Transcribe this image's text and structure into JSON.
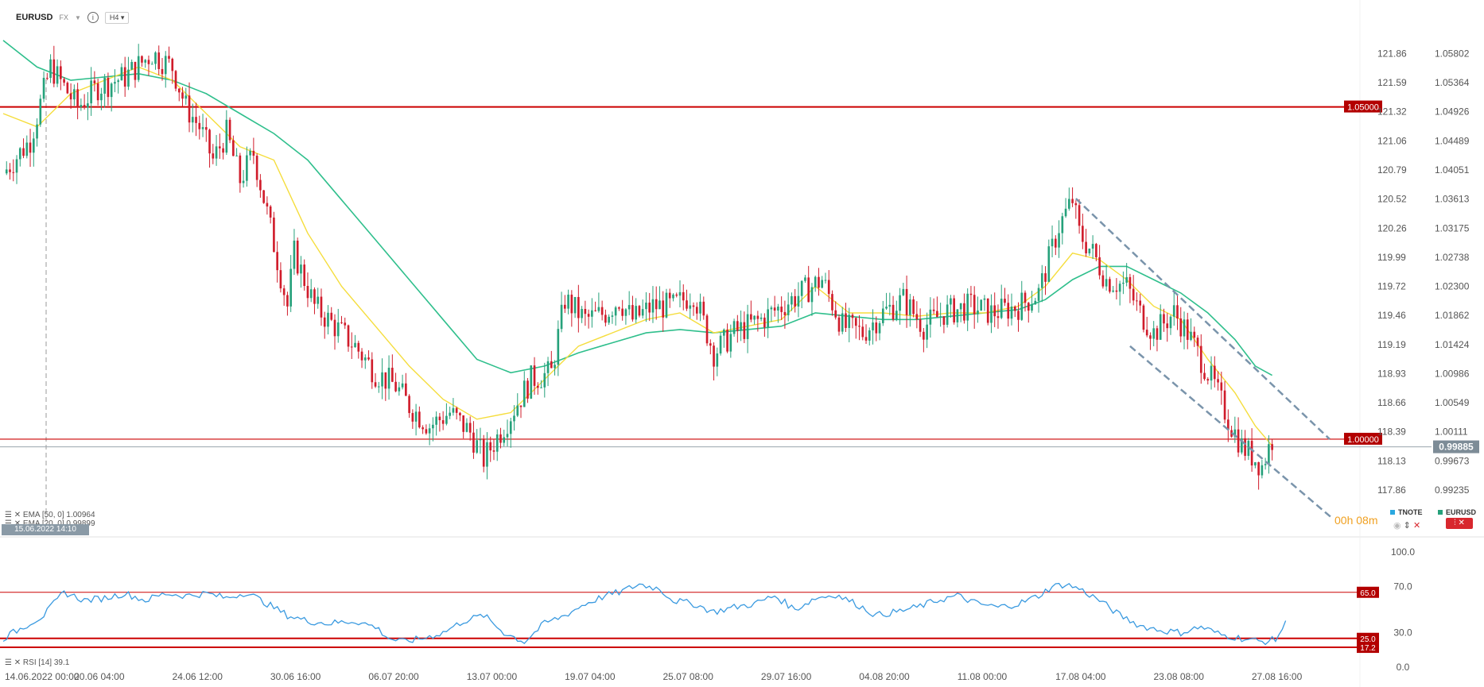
{
  "header": {
    "symbol": "EURUSD",
    "market": "FX",
    "timeframe": "H4"
  },
  "indicators": {
    "ema50": "EMA [50, 0] 1.00964",
    "ema_hidden": "EMA [20, 0] 0.99899",
    "rsi": "RSI [14] 39.1"
  },
  "crosshair_date": "15.06.2022 14:10",
  "timer": "00h 08m",
  "legend": [
    {
      "name": "TNOTE",
      "color": "#2aa8e0"
    },
    {
      "name": "EURUSD",
      "color": "#26a17b"
    }
  ],
  "colors": {
    "up": "#26a17b",
    "down": "#d01c2b",
    "ema_fast": "#f5dd3c",
    "ema_slow": "#2fbf8c",
    "rsi": "#3a9ae0",
    "level": "#cc0000",
    "trend": "#7a94ab"
  },
  "chart_data": {
    "type": "candlestick",
    "title": "",
    "x_ticks": [
      "14.06.2022 00:00",
      "20.06 04:00",
      "24.06 12:00",
      "30.06 16:00",
      "06.07 20:00",
      "13.07 00:00",
      "19.07 04:00",
      "25.07 08:00",
      "29.07 16:00",
      "04.08 20:00",
      "11.08 00:00",
      "17.08 04:00",
      "23.08 08:00",
      "27.08 16:00"
    ],
    "y_left_ticks": [
      "121.86",
      "121.59",
      "121.32",
      "121.06",
      "120.79",
      "120.52",
      "120.26",
      "119.99",
      "119.72",
      "119.46",
      "119.19",
      "118.93",
      "118.66",
      "118.39",
      "118.13",
      "117.86"
    ],
    "y_right_ticks": [
      "1.05802",
      "1.05364",
      "1.04926",
      "1.04489",
      "1.04051",
      "1.03613",
      "1.03175",
      "1.02738",
      "1.02300",
      "1.01862",
      "1.01424",
      "1.00986",
      "1.00549",
      "1.00111",
      "0.99673",
      "0.99235"
    ],
    "ylim": [
      0.9884,
      1.0625
    ],
    "current_price": "0.99885",
    "levels": [
      {
        "label": "1.05000",
        "value": 1.05
      },
      {
        "label": "1.00000",
        "value": 1.0
      }
    ],
    "close_path": [
      [
        0,
        1.04
      ],
      [
        8,
        1.045
      ],
      [
        14,
        1.056
      ],
      [
        22,
        1.05
      ],
      [
        28,
        1.053
      ],
      [
        36,
        1.0545
      ],
      [
        44,
        1.058
      ],
      [
        50,
        1.056
      ],
      [
        54,
        1.05
      ],
      [
        58,
        1.047
      ],
      [
        62,
        1.042
      ],
      [
        66,
        1.046
      ],
      [
        70,
        1.039
      ],
      [
        74,
        1.043
      ],
      [
        78,
        1.034
      ],
      [
        84,
        1.02
      ],
      [
        86,
        1.028
      ],
      [
        92,
        1.02
      ],
      [
        96,
        1.018
      ],
      [
        104,
        1.014
      ],
      [
        110,
        1.01
      ],
      [
        116,
        1.008
      ],
      [
        120,
        1.005
      ],
      [
        126,
        1.002
      ],
      [
        132,
        1.004
      ],
      [
        138,
        1.001
      ],
      [
        142,
        0.997
      ],
      [
        148,
        1.002
      ],
      [
        156,
        1.009
      ],
      [
        162,
        1.01
      ],
      [
        166,
        1.021
      ],
      [
        172,
        1.018
      ],
      [
        178,
        1.019
      ],
      [
        182,
        1.021
      ],
      [
        186,
        1.018
      ],
      [
        192,
        1.02
      ],
      [
        198,
        1.02
      ],
      [
        204,
        1.022
      ],
      [
        210,
        1.013
      ],
      [
        216,
        1.016
      ],
      [
        224,
        1.018
      ],
      [
        230,
        1.02
      ],
      [
        236,
        1.022
      ],
      [
        242,
        1.024
      ],
      [
        248,
        1.017
      ],
      [
        254,
        1.016
      ],
      [
        260,
        1.019
      ],
      [
        266,
        1.021
      ],
      [
        272,
        1.017
      ],
      [
        278,
        1.019
      ],
      [
        286,
        1.02
      ],
      [
        292,
        1.019
      ],
      [
        300,
        1.02
      ],
      [
        306,
        1.022
      ],
      [
        312,
        1.032
      ],
      [
        316,
        1.036
      ],
      [
        318,
        1.031
      ],
      [
        322,
        1.028
      ],
      [
        326,
        1.024
      ],
      [
        332,
        1.023
      ],
      [
        336,
        1.019
      ],
      [
        340,
        1.016
      ],
      [
        346,
        1.019
      ],
      [
        350,
        1.016
      ],
      [
        354,
        1.012
      ],
      [
        358,
        1.008
      ],
      [
        362,
        1.003
      ],
      [
        366,
        0.999
      ],
      [
        372,
        0.996
      ],
      [
        375,
        1.0
      ]
    ],
    "ema_fast": [
      [
        0,
        1.049
      ],
      [
        10,
        1.047
      ],
      [
        20,
        1.052
      ],
      [
        30,
        1.054
      ],
      [
        40,
        1.056
      ],
      [
        50,
        1.054
      ],
      [
        60,
        1.049
      ],
      [
        70,
        1.044
      ],
      [
        80,
        1.042
      ],
      [
        90,
        1.031
      ],
      [
        100,
        1.023
      ],
      [
        110,
        1.017
      ],
      [
        120,
        1.011
      ],
      [
        130,
        1.006
      ],
      [
        140,
        1.003
      ],
      [
        150,
        1.004
      ],
      [
        160,
        1.009
      ],
      [
        170,
        1.014
      ],
      [
        180,
        1.016
      ],
      [
        190,
        1.018
      ],
      [
        200,
        1.019
      ],
      [
        210,
        1.016
      ],
      [
        220,
        1.017
      ],
      [
        230,
        1.018
      ],
      [
        240,
        1.023
      ],
      [
        250,
        1.019
      ],
      [
        260,
        1.019
      ],
      [
        270,
        1.0185
      ],
      [
        280,
        1.019
      ],
      [
        290,
        1.019
      ],
      [
        300,
        1.02
      ],
      [
        308,
        1.023
      ],
      [
        316,
        1.028
      ],
      [
        324,
        1.027
      ],
      [
        332,
        1.024
      ],
      [
        340,
        1.02
      ],
      [
        348,
        1.018
      ],
      [
        356,
        1.012
      ],
      [
        364,
        1.007
      ],
      [
        370,
        1.002
      ],
      [
        375,
        0.999
      ]
    ],
    "ema_slow": [
      [
        0,
        1.06
      ],
      [
        10,
        1.056
      ],
      [
        20,
        1.054
      ],
      [
        30,
        1.0545
      ],
      [
        40,
        1.055
      ],
      [
        50,
        1.054
      ],
      [
        60,
        1.052
      ],
      [
        70,
        1.049
      ],
      [
        80,
        1.046
      ],
      [
        90,
        1.042
      ],
      [
        100,
        1.036
      ],
      [
        110,
        1.03
      ],
      [
        120,
        1.024
      ],
      [
        130,
        1.018
      ],
      [
        140,
        1.012
      ],
      [
        150,
        1.01
      ],
      [
        160,
        1.011
      ],
      [
        170,
        1.013
      ],
      [
        180,
        1.0145
      ],
      [
        190,
        1.016
      ],
      [
        200,
        1.0165
      ],
      [
        210,
        1.016
      ],
      [
        220,
        1.0165
      ],
      [
        230,
        1.017
      ],
      [
        240,
        1.019
      ],
      [
        250,
        1.0185
      ],
      [
        260,
        1.018
      ],
      [
        270,
        1.018
      ],
      [
        280,
        1.0185
      ],
      [
        290,
        1.019
      ],
      [
        300,
        1.0195
      ],
      [
        308,
        1.021
      ],
      [
        316,
        1.024
      ],
      [
        324,
        1.026
      ],
      [
        332,
        1.026
      ],
      [
        340,
        1.024
      ],
      [
        348,
        1.022
      ],
      [
        356,
        1.019
      ],
      [
        364,
        1.015
      ],
      [
        370,
        1.011
      ],
      [
        375,
        1.0096
      ]
    ],
    "trend_lines": [
      {
        "from": [
          317,
          1.0362
        ],
        "to": [
          392,
          1.0
        ]
      },
      {
        "from": [
          333,
          1.014
        ],
        "to": [
          393,
          0.988
        ]
      }
    ],
    "rsi": {
      "ylim": [
        0,
        100
      ],
      "ticks": [
        "100.0",
        "70.0",
        "30.0",
        "0.0"
      ],
      "levels": [
        {
          "label": "65.0",
          "value": 65
        },
        {
          "label": "25.0",
          "value": 25
        },
        {
          "label": "17.2",
          "value": 17.2
        }
      ],
      "path": [
        [
          0,
          25
        ],
        [
          6,
          35
        ],
        [
          12,
          45
        ],
        [
          18,
          65
        ],
        [
          24,
          58
        ],
        [
          30,
          60
        ],
        [
          36,
          64
        ],
        [
          42,
          58
        ],
        [
          48,
          64
        ],
        [
          54,
          62
        ],
        [
          60,
          64
        ],
        [
          66,
          60
        ],
        [
          72,
          65
        ],
        [
          78,
          55
        ],
        [
          84,
          45
        ],
        [
          90,
          40
        ],
        [
          96,
          38
        ],
        [
          104,
          40
        ],
        [
          110,
          35
        ],
        [
          114,
          25
        ],
        [
          118,
          22
        ],
        [
          124,
          25
        ],
        [
          130,
          30
        ],
        [
          136,
          40
        ],
        [
          142,
          45
        ],
        [
          148,
          30
        ],
        [
          154,
          22
        ],
        [
          160,
          38
        ],
        [
          166,
          45
        ],
        [
          172,
          55
        ],
        [
          178,
          62
        ],
        [
          182,
          65
        ],
        [
          188,
          72
        ],
        [
          194,
          68
        ],
        [
          198,
          58
        ],
        [
          204,
          55
        ],
        [
          210,
          48
        ],
        [
          216,
          52
        ],
        [
          222,
          55
        ],
        [
          228,
          62
        ],
        [
          234,
          50
        ],
        [
          240,
          60
        ],
        [
          246,
          63
        ],
        [
          252,
          55
        ],
        [
          258,
          45
        ],
        [
          264,
          48
        ],
        [
          270,
          52
        ],
        [
          276,
          58
        ],
        [
          282,
          62
        ],
        [
          288,
          55
        ],
        [
          294,
          52
        ],
        [
          300,
          55
        ],
        [
          306,
          62
        ],
        [
          310,
          70
        ],
        [
          314,
          72
        ],
        [
          318,
          68
        ],
        [
          324,
          58
        ],
        [
          330,
          45
        ],
        [
          336,
          36
        ],
        [
          342,
          32
        ],
        [
          348,
          30
        ],
        [
          354,
          35
        ],
        [
          360,
          28
        ],
        [
          366,
          25
        ],
        [
          372,
          22
        ],
        [
          376,
          24
        ],
        [
          379,
          38
        ]
      ]
    }
  }
}
